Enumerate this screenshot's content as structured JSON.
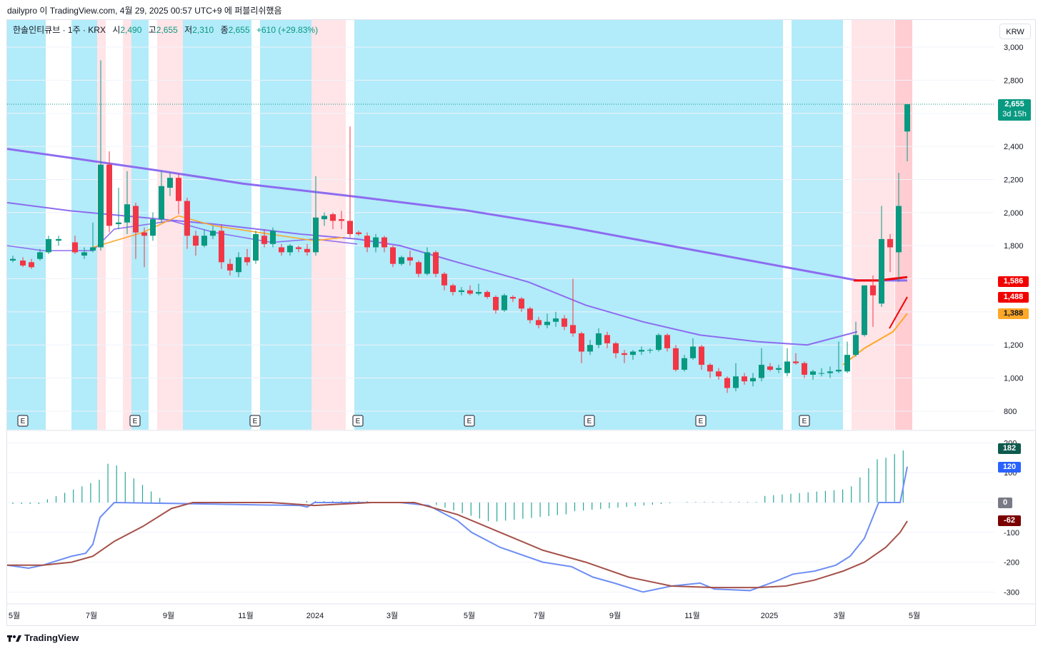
{
  "header": {
    "text": "dailypro 이 TradingView.com, 4월 29, 2025 00:57 UTC+9 에 퍼블리쉬했음"
  },
  "legend": {
    "symbol": "한솔인티큐브 · 1주 · KRX",
    "open_label": "시",
    "open": "2,490",
    "high_label": "고",
    "high": "2,655",
    "low_label": "저",
    "low": "2,310",
    "close_label": "종",
    "close": "2,655",
    "change": "+610 (+29.83%)"
  },
  "currency_button": "KRW",
  "price_axis": {
    "ticks": [
      "3,000",
      "2,800",
      "2,600",
      "2,400",
      "2,200",
      "2,000",
      "1,800",
      "1,600",
      "1,400",
      "1,200",
      "1,000",
      "800"
    ]
  },
  "price_tags": {
    "last": "2,655",
    "countdown": "3d 15h",
    "ma_red": "1,586",
    "ma_red2": "1,488",
    "ma_orange": "1,388"
  },
  "macd_axis": {
    "ticks": [
      "200",
      "100",
      "0",
      "-100",
      "-200",
      "-300"
    ]
  },
  "macd_tags": {
    "hist": "182",
    "macd": "120",
    "zero": "0",
    "signal": "-62"
  },
  "time_axis": {
    "labels": [
      "5월",
      "7월",
      "9월",
      "11월",
      "2024",
      "3월",
      "5월",
      "7월",
      "9월",
      "11월",
      "2025",
      "3월",
      "5월"
    ]
  },
  "earnings_marker": "E",
  "footer": {
    "brand": "TradingView"
  },
  "colors": {
    "up": "#089981",
    "down": "#f23645",
    "cyan": "#b2ebf9",
    "pink": "#ffe4e8",
    "purple": "#8c6cf0",
    "orange": "#ffa726"
  }
}
